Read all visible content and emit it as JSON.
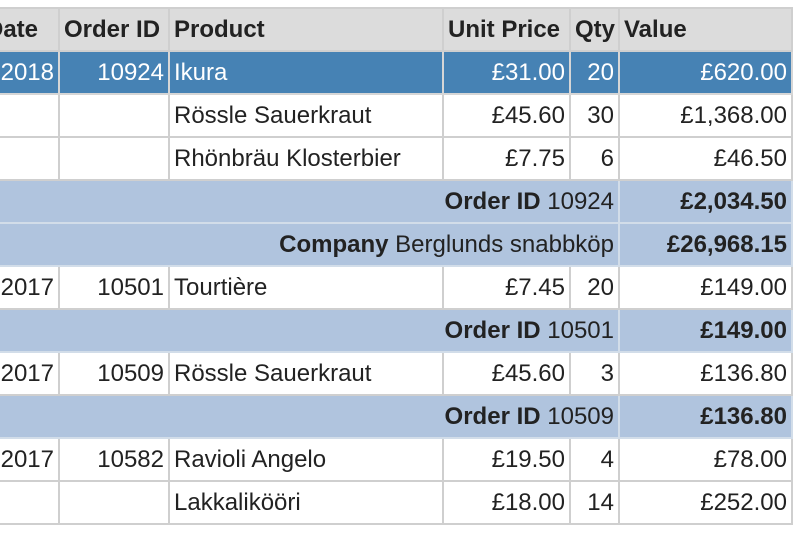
{
  "columns": {
    "date": "Date",
    "order_id": "Order ID",
    "product": "Product",
    "unit_price": "Unit Price",
    "qty": "Qty",
    "value": "Value"
  },
  "rows": [
    {
      "kind": "data",
      "selected": true,
      "date": "2018",
      "order_id": "10924",
      "product": "Ikura",
      "unit_price": "£31.00",
      "qty": "20",
      "value": "£620.00"
    },
    {
      "kind": "data",
      "date": "",
      "order_id": "",
      "product": "Rössle Sauerkraut",
      "unit_price": "£45.60",
      "qty": "30",
      "value": "£1,368.00"
    },
    {
      "kind": "data",
      "date": "",
      "order_id": "",
      "product": "Rhönbräu Klosterbier",
      "unit_price": "£7.75",
      "qty": "6",
      "value": "£46.50"
    },
    {
      "kind": "group",
      "label": "Order ID",
      "group_value": "10924",
      "total": "£2,034.50"
    },
    {
      "kind": "group",
      "label": "Company",
      "group_value": "Berglunds snabbköp",
      "total": "£26,968.15"
    },
    {
      "kind": "data",
      "date": "2017",
      "order_id": "10501",
      "product": "Tourtière",
      "unit_price": "£7.45",
      "qty": "20",
      "value": "£149.00"
    },
    {
      "kind": "group",
      "label": "Order ID",
      "group_value": "10501",
      "total": "£149.00"
    },
    {
      "kind": "data",
      "date": "2017",
      "order_id": "10509",
      "product": "Rössle Sauerkraut",
      "unit_price": "£45.60",
      "qty": "3",
      "value": "£136.80"
    },
    {
      "kind": "group",
      "label": "Order ID",
      "group_value": "10509",
      "total": "£136.80"
    },
    {
      "kind": "data",
      "date": "2017",
      "order_id": "10582",
      "product": "Ravioli Angelo",
      "unit_price": "£19.50",
      "qty": "4",
      "value": "£78.00"
    },
    {
      "kind": "data",
      "date": "",
      "order_id": "",
      "product": "Lakkalikööri",
      "unit_price": "£18.00",
      "qty": "14",
      "value": "£252.00"
    }
  ]
}
